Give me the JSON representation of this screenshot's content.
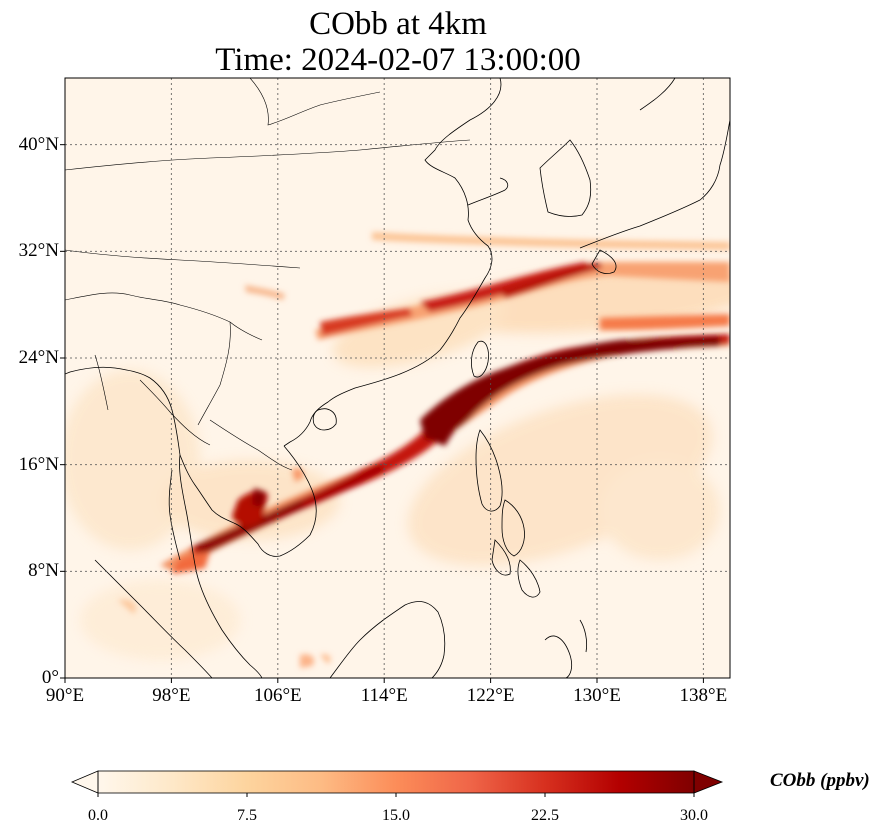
{
  "title": {
    "line1": "CObb at 4km",
    "line2": "Time: 2024-02-07 13:00:00"
  },
  "map": {
    "extent": {
      "lon": [
        90,
        140
      ],
      "lat": [
        0,
        45
      ]
    },
    "lon_ticks": [
      {
        "value": 90,
        "label": "90°E"
      },
      {
        "value": 98,
        "label": "98°E"
      },
      {
        "value": 106,
        "label": "106°E"
      },
      {
        "value": 114,
        "label": "114°E"
      },
      {
        "value": 122,
        "label": "122°E"
      },
      {
        "value": 130,
        "label": "130°E"
      },
      {
        "value": 138,
        "label": "138°E"
      }
    ],
    "lat_ticks": [
      {
        "value": 0,
        "label": "0°"
      },
      {
        "value": 8,
        "label": "8°N"
      },
      {
        "value": 16,
        "label": "16°N"
      },
      {
        "value": 24,
        "label": "24°N"
      },
      {
        "value": 32,
        "label": "32°N"
      },
      {
        "value": 40,
        "label": "40°N"
      }
    ],
    "gridlines": true,
    "background_color": "#fff5e9"
  },
  "colorbar": {
    "label": "CObb (ppbv)",
    "min": 0.0,
    "max": 30.0,
    "extend": "both",
    "ticks": [
      "0.0",
      "7.5",
      "15.0",
      "22.5",
      "30.0"
    ],
    "colors": [
      "#fff7ec",
      "#fee8c8",
      "#fdd49e",
      "#fdbb84",
      "#fc8d59",
      "#ef6548",
      "#d7301f",
      "#b30000",
      "#7f0000"
    ]
  }
}
